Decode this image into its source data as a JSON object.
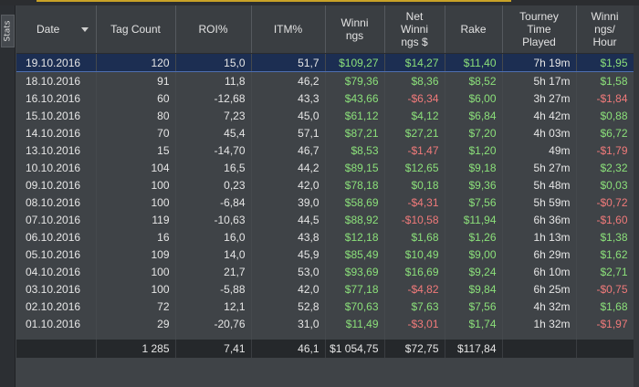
{
  "panel": {
    "tab_label": "Stats"
  },
  "columns": [
    "Date",
    "Tag Count",
    "ROI%",
    "ITM%",
    "Winni\nngs",
    "Net\nWinni\nngs $",
    "Rake",
    "Tourney\nTime\nPlayed",
    "Winni\nngs/\nHour"
  ],
  "rows": [
    {
      "date": "19.10.2016",
      "tag": "120",
      "roi": "15,0",
      "itm": "51,7",
      "win": "$109,27",
      "net": "$14,27",
      "rake": "$11,40",
      "time": "7h 19m",
      "wph": "$1,95",
      "net_neg": false,
      "wph_neg": false,
      "selected": true
    },
    {
      "date": "18.10.2016",
      "tag": "91",
      "roi": "11,8",
      "itm": "46,2",
      "win": "$79,36",
      "net": "$8,36",
      "rake": "$8,52",
      "time": "5h 17m",
      "wph": "$1,58",
      "net_neg": false,
      "wph_neg": false
    },
    {
      "date": "16.10.2016",
      "tag": "60",
      "roi": "-12,68",
      "itm": "43,3",
      "win": "$43,66",
      "net": "-$6,34",
      "rake": "$6,00",
      "time": "3h 27m",
      "wph": "-$1,84",
      "net_neg": true,
      "wph_neg": true
    },
    {
      "date": "15.10.2016",
      "tag": "80",
      "roi": "7,23",
      "itm": "45,0",
      "win": "$61,12",
      "net": "$4,12",
      "rake": "$6,84",
      "time": "4h 42m",
      "wph": "$0,88",
      "net_neg": false,
      "wph_neg": false
    },
    {
      "date": "14.10.2016",
      "tag": "70",
      "roi": "45,4",
      "itm": "57,1",
      "win": "$87,21",
      "net": "$27,21",
      "rake": "$7,20",
      "time": "4h 03m",
      "wph": "$6,72",
      "net_neg": false,
      "wph_neg": false
    },
    {
      "date": "13.10.2016",
      "tag": "15",
      "roi": "-14,70",
      "itm": "46,7",
      "win": "$8,53",
      "net": "-$1,47",
      "rake": "$1,20",
      "time": "49m",
      "wph": "-$1,79",
      "net_neg": true,
      "wph_neg": true
    },
    {
      "date": "10.10.2016",
      "tag": "104",
      "roi": "16,5",
      "itm": "44,2",
      "win": "$89,15",
      "net": "$12,65",
      "rake": "$9,18",
      "time": "5h 27m",
      "wph": "$2,32",
      "net_neg": false,
      "wph_neg": false
    },
    {
      "date": "09.10.2016",
      "tag": "100",
      "roi": "0,23",
      "itm": "42,0",
      "win": "$78,18",
      "net": "$0,18",
      "rake": "$9,36",
      "time": "5h 48m",
      "wph": "$0,03",
      "net_neg": false,
      "wph_neg": false
    },
    {
      "date": "08.10.2016",
      "tag": "100",
      "roi": "-6,84",
      "itm": "39,0",
      "win": "$58,69",
      "net": "-$4,31",
      "rake": "$7,56",
      "time": "5h 59m",
      "wph": "-$0,72",
      "net_neg": true,
      "wph_neg": true
    },
    {
      "date": "07.10.2016",
      "tag": "119",
      "roi": "-10,63",
      "itm": "44,5",
      "win": "$88,92",
      "net": "-$10,58",
      "rake": "$11,94",
      "time": "6h 36m",
      "wph": "-$1,60",
      "net_neg": true,
      "wph_neg": true
    },
    {
      "date": "06.10.2016",
      "tag": "16",
      "roi": "16,0",
      "itm": "43,8",
      "win": "$12,18",
      "net": "$1,68",
      "rake": "$1,26",
      "time": "1h 13m",
      "wph": "$1,38",
      "net_neg": false,
      "wph_neg": false
    },
    {
      "date": "05.10.2016",
      "tag": "109",
      "roi": "14,0",
      "itm": "45,9",
      "win": "$85,49",
      "net": "$10,49",
      "rake": "$9,00",
      "time": "6h 29m",
      "wph": "$1,62",
      "net_neg": false,
      "wph_neg": false
    },
    {
      "date": "04.10.2016",
      "tag": "100",
      "roi": "21,7",
      "itm": "53,0",
      "win": "$93,69",
      "net": "$16,69",
      "rake": "$9,24",
      "time": "6h 10m",
      "wph": "$2,71",
      "net_neg": false,
      "wph_neg": false
    },
    {
      "date": "03.10.2016",
      "tag": "100",
      "roi": "-5,88",
      "itm": "42,0",
      "win": "$77,18",
      "net": "-$4,82",
      "rake": "$9,84",
      "time": "6h 25m",
      "wph": "-$0,75",
      "net_neg": true,
      "wph_neg": true
    },
    {
      "date": "02.10.2016",
      "tag": "72",
      "roi": "12,1",
      "itm": "52,8",
      "win": "$70,63",
      "net": "$7,63",
      "rake": "$7,56",
      "time": "4h 32m",
      "wph": "$1,68",
      "net_neg": false,
      "wph_neg": false
    },
    {
      "date": "01.10.2016",
      "tag": "29",
      "roi": "-20,76",
      "itm": "31,0",
      "win": "$11,49",
      "net": "-$3,01",
      "rake": "$1,74",
      "time": "1h 32m",
      "wph": "-$1,97",
      "net_neg": true,
      "wph_neg": true
    }
  ],
  "totals": {
    "date": "",
    "tag": "1 285",
    "roi": "7,41",
    "itm": "46,1",
    "win": "$1 054,75",
    "net": "$72,75",
    "rake": "$117,84",
    "time": "",
    "wph": ""
  },
  "colors": {
    "positive": "#8be07a",
    "negative": "#f07a7a",
    "selected_row": "#1c2e52",
    "background": "#3f4347"
  }
}
